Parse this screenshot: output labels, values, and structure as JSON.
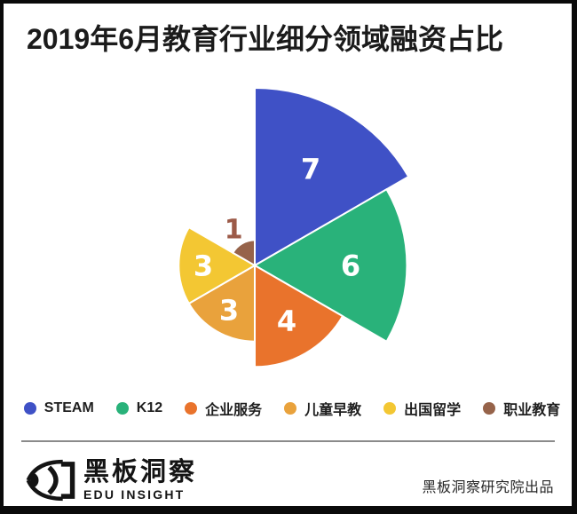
{
  "header": {
    "title": "2019年6月教育行业细分领域融资占比"
  },
  "chart_data": {
    "type": "pie",
    "subtype": "nightingale-rose-area",
    "title": "2019年6月教育行业细分领域融资占比",
    "categories": [
      "STEAM",
      "K12",
      "企业服务",
      "儿童早教",
      "出国留学",
      "职业教育"
    ],
    "values": [
      7,
      6,
      4,
      3,
      3,
      1
    ],
    "colors": [
      "#3F51C6",
      "#29B27A",
      "#E9732C",
      "#E9A23C",
      "#F3C733",
      "#96634A"
    ],
    "data_labels": [
      "7",
      "6",
      "4",
      "3",
      "3",
      "1"
    ],
    "label_placements": [
      "inside",
      "inside",
      "inside",
      "inside",
      "inside",
      "outside"
    ],
    "inside_label_color": "#FFFFFF",
    "outside_label_color": "#9C5A48",
    "sector_angle_deg": 60,
    "start_angle": "top",
    "direction": "clockwise",
    "max_radius_px": 200,
    "sector_border_color": "#FFFFFF",
    "legend_position": "bottom",
    "grid": false
  },
  "footer": {
    "brand_cn": "黑板洞察",
    "brand_en": "EDU INSIGHT",
    "credit": "黑板洞察研究院出品"
  }
}
